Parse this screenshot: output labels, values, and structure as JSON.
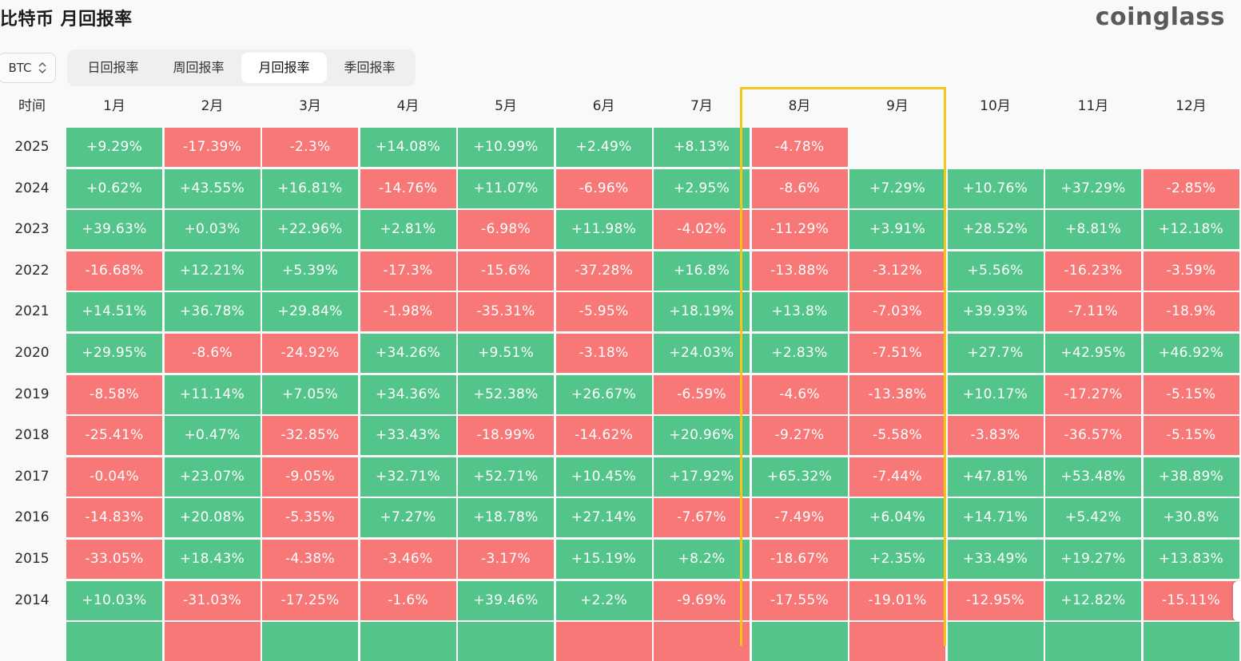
{
  "page": {
    "title": "比特币 月回报率",
    "brand": "coinglass"
  },
  "coin_select": {
    "value": "BTC"
  },
  "tabs": [
    {
      "label": "日回报率",
      "active": false
    },
    {
      "label": "周回报率",
      "active": false
    },
    {
      "label": "月回报率",
      "active": true
    },
    {
      "label": "季回报率",
      "active": false
    }
  ],
  "table": {
    "corner_label": "时间",
    "months": [
      "1月",
      "2月",
      "3月",
      "4月",
      "5月",
      "6月",
      "7月",
      "8月",
      "9月",
      "10月",
      "11月",
      "12月"
    ],
    "rows": [
      {
        "year": "2025",
        "values": [
          "+9.29%",
          "-17.39%",
          "-2.3%",
          "+14.08%",
          "+10.99%",
          "+2.49%",
          "+8.13%",
          "-4.78%",
          "",
          "",
          "",
          ""
        ]
      },
      {
        "year": "2024",
        "values": [
          "+0.62%",
          "+43.55%",
          "+16.81%",
          "-14.76%",
          "+11.07%",
          "-6.96%",
          "+2.95%",
          "-8.6%",
          "+7.29%",
          "+10.76%",
          "+37.29%",
          "-2.85%"
        ]
      },
      {
        "year": "2023",
        "values": [
          "+39.63%",
          "+0.03%",
          "+22.96%",
          "+2.81%",
          "-6.98%",
          "+11.98%",
          "-4.02%",
          "-11.29%",
          "+3.91%",
          "+28.52%",
          "+8.81%",
          "+12.18%"
        ]
      },
      {
        "year": "2022",
        "values": [
          "-16.68%",
          "+12.21%",
          "+5.39%",
          "-17.3%",
          "-15.6%",
          "-37.28%",
          "+16.8%",
          "-13.88%",
          "-3.12%",
          "+5.56%",
          "-16.23%",
          "-3.59%"
        ]
      },
      {
        "year": "2021",
        "values": [
          "+14.51%",
          "+36.78%",
          "+29.84%",
          "-1.98%",
          "-35.31%",
          "-5.95%",
          "+18.19%",
          "+13.8%",
          "-7.03%",
          "+39.93%",
          "-7.11%",
          "-18.9%"
        ]
      },
      {
        "year": "2020",
        "values": [
          "+29.95%",
          "-8.6%",
          "-24.92%",
          "+34.26%",
          "+9.51%",
          "-3.18%",
          "+24.03%",
          "+2.83%",
          "-7.51%",
          "+27.7%",
          "+42.95%",
          "+46.92%"
        ]
      },
      {
        "year": "2019",
        "values": [
          "-8.58%",
          "+11.14%",
          "+7.05%",
          "+34.36%",
          "+52.38%",
          "+26.67%",
          "-6.59%",
          "-4.6%",
          "-13.38%",
          "+10.17%",
          "-17.27%",
          "-5.15%"
        ]
      },
      {
        "year": "2018",
        "values": [
          "-25.41%",
          "+0.47%",
          "-32.85%",
          "+33.43%",
          "-18.99%",
          "-14.62%",
          "+20.96%",
          "-9.27%",
          "-5.58%",
          "-3.83%",
          "-36.57%",
          "-5.15%"
        ]
      },
      {
        "year": "2017",
        "values": [
          "-0.04%",
          "+23.07%",
          "-9.05%",
          "+32.71%",
          "+52.71%",
          "+10.45%",
          "+17.92%",
          "+65.32%",
          "-7.44%",
          "+47.81%",
          "+53.48%",
          "+38.89%"
        ]
      },
      {
        "year": "2016",
        "values": [
          "-14.83%",
          "+20.08%",
          "-5.35%",
          "+7.27%",
          "+18.78%",
          "+27.14%",
          "-7.67%",
          "-7.49%",
          "+6.04%",
          "+14.71%",
          "+5.42%",
          "+30.8%"
        ]
      },
      {
        "year": "2015",
        "values": [
          "-33.05%",
          "+18.43%",
          "-4.38%",
          "-3.46%",
          "-3.17%",
          "+15.19%",
          "+8.2%",
          "-18.67%",
          "+2.35%",
          "+33.49%",
          "+19.27%",
          "+13.83%"
        ]
      },
      {
        "year": "2014",
        "values": [
          "+10.03%",
          "-31.03%",
          "-17.25%",
          "-1.6%",
          "+39.46%",
          "+2.2%",
          "-9.69%",
          "-17.55%",
          "-19.01%",
          "-12.95%",
          "+12.82%",
          "-15.11%"
        ]
      }
    ],
    "partial_row_signs": [
      "+",
      "-",
      "+",
      "+",
      "+",
      "-",
      "-",
      "+",
      "-",
      "+",
      "+",
      "+"
    ]
  },
  "colors": {
    "positive": "#54c58a",
    "negative": "#f77877",
    "highlight": "#f5c518"
  }
}
